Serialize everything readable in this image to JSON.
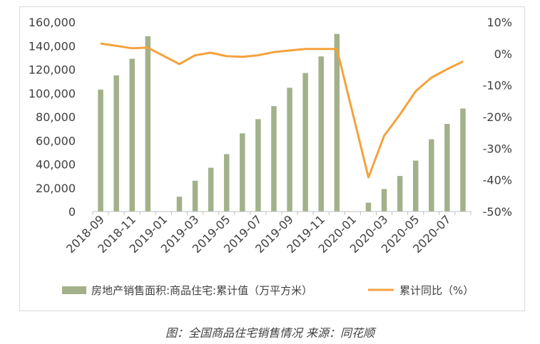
{
  "caption": "图：全国商品住宅销售情况 来源：同花顺",
  "colors": {
    "bar": "#a3b18a",
    "line": "#f4a23c",
    "axis": "#bfbfbf",
    "text": "#404040"
  },
  "chart_data": {
    "type": "bar",
    "x": [
      "2018-09",
      "2018-10",
      "2018-11",
      "2018-12",
      "2019-01",
      "2019-02",
      "2019-03",
      "2019-04",
      "2019-05",
      "2019-06",
      "2019-07",
      "2019-08",
      "2019-09",
      "2019-10",
      "2019-11",
      "2019-12",
      "2020-01",
      "2020-02",
      "2020-03",
      "2020-04",
      "2020-05",
      "2020-06",
      "2020-07",
      "2020-08"
    ],
    "x_tick_labels": [
      "2018-09",
      "2018-11",
      "2019-01",
      "2019-03",
      "2019-05",
      "2019-07",
      "2019-09",
      "2019-11",
      "2020-01",
      "2020-03",
      "2020-05",
      "2020-07"
    ],
    "series": [
      {
        "name": "房地产销售面积:商品住宅:累计值（万平方米）",
        "type": "bar",
        "axis": "left",
        "values": [
          103000,
          115000,
          129000,
          148000,
          null,
          12500,
          26000,
          37000,
          48500,
          66000,
          78000,
          89000,
          104500,
          117000,
          131000,
          150000,
          null,
          7500,
          19000,
          30000,
          43000,
          61000,
          74000,
          87000
        ]
      },
      {
        "name": "累计同比（%）",
        "type": "line",
        "axis": "right",
        "values": [
          3.2,
          2.5,
          1.7,
          1.9,
          null,
          -3.3,
          -0.5,
          0.3,
          -0.8,
          -1.0,
          -0.5,
          0.5,
          1.0,
          1.5,
          1.5,
          1.5,
          null,
          -39.2,
          -26.0,
          -19.3,
          -11.9,
          -7.6,
          -4.9,
          -2.5
        ]
      }
    ],
    "y_left": {
      "ylim": [
        0,
        160000
      ],
      "ticks": [
        "0",
        "20,000",
        "40,000",
        "60,000",
        "80,000",
        "100,000",
        "120,000",
        "140,000",
        "160,000"
      ]
    },
    "y_right": {
      "ylim": [
        -50,
        10
      ],
      "ticks": [
        "-50%",
        "-40%",
        "-30%",
        "-20%",
        "-10%",
        "0%",
        "10%"
      ]
    },
    "legend_position": "bottom",
    "grid": false
  }
}
